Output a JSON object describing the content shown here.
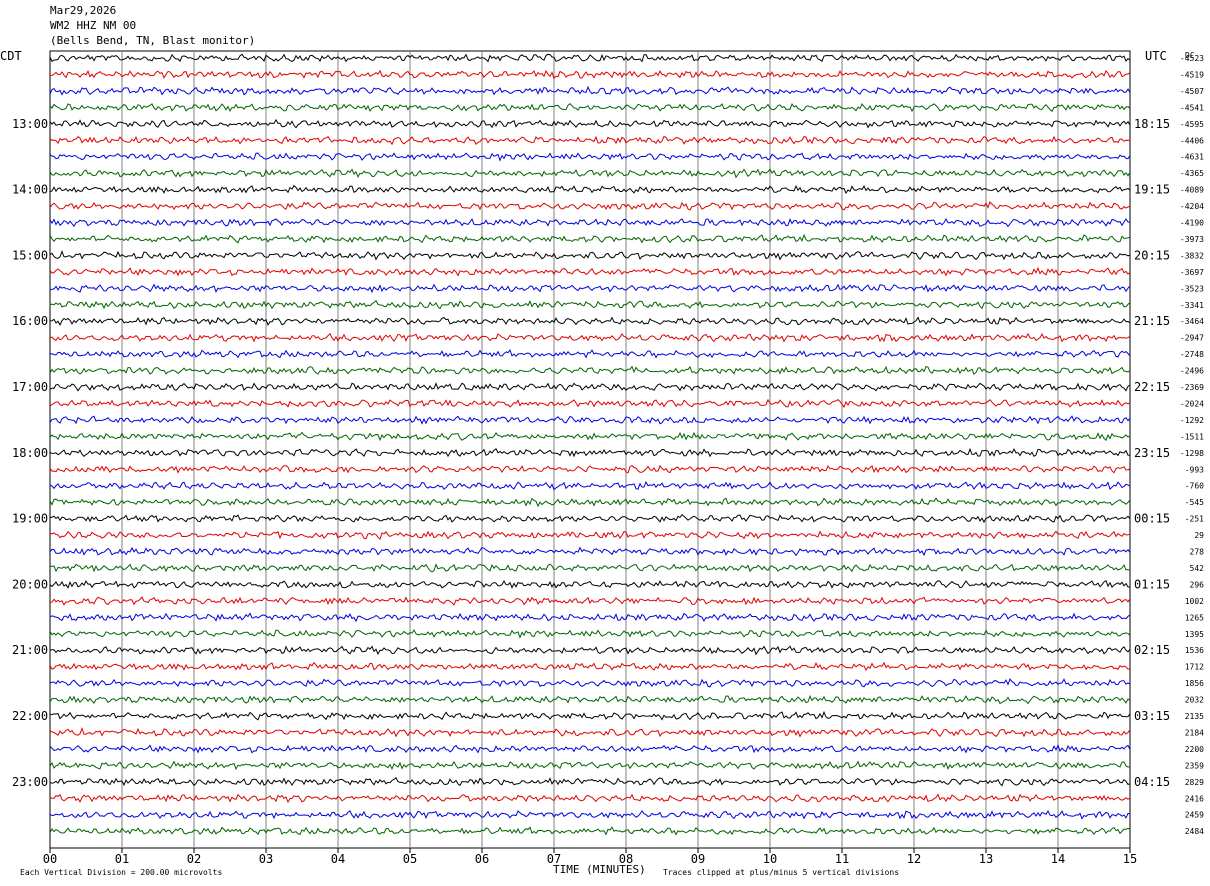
{
  "header": {
    "date": "Mar29,2026",
    "station": "WM2 HHZ NM 00",
    "location": "(Bells Bend, TN, Blast monitor)"
  },
  "chart_data": {
    "type": "line",
    "left_timezone": "CDT",
    "right_timezone": "UTC",
    "dc_label": "DC",
    "xlabel": "TIME (MINUTES)",
    "xlim": [
      0,
      15
    ],
    "x_ticks": [
      "00",
      "01",
      "02",
      "03",
      "04",
      "05",
      "06",
      "07",
      "08",
      "09",
      "10",
      "11",
      "12",
      "13",
      "14",
      "15"
    ],
    "left_hour_labels": [
      "13:00",
      "14:00",
      "15:00",
      "16:00",
      "17:00",
      "18:00",
      "19:00",
      "20:00",
      "21:00",
      "22:00",
      "23:00"
    ],
    "right_hour_labels": [
      "18:15",
      "19:15",
      "20:15",
      "21:15",
      "22:15",
      "23:15",
      "00:15",
      "01:15",
      "02:15",
      "03:15",
      "04:15"
    ],
    "trace_colors": [
      "#000000",
      "#e00000",
      "#0000e0",
      "#006400"
    ],
    "dc_offsets": [
      "-4523",
      "-4519",
      "-4507",
      "-4541",
      "-4595",
      "-4406",
      "-4631",
      "-4365",
      "-4089",
      "-4204",
      "-4190",
      "-3973",
      "-3832",
      "-3697",
      "-3523",
      "-3341",
      "-3464",
      "-2947",
      "-2748",
      "-2496",
      "-2369",
      "-2024",
      "-1292",
      "-1511",
      "-1298",
      "-993",
      "-760",
      "-545",
      "-251",
      "29",
      "278",
      "542",
      "296",
      "1002",
      "1265",
      "1395",
      "1536",
      "1712",
      "1856",
      "2032",
      "2135",
      "2184",
      "2200",
      "2359",
      "2829",
      "2416",
      "2459",
      "2484"
    ],
    "footer_left": "Each Vertical Division =  200.00 microvolts",
    "footer_right": "Traces clipped at plus/minus 5 vertical divisions"
  }
}
